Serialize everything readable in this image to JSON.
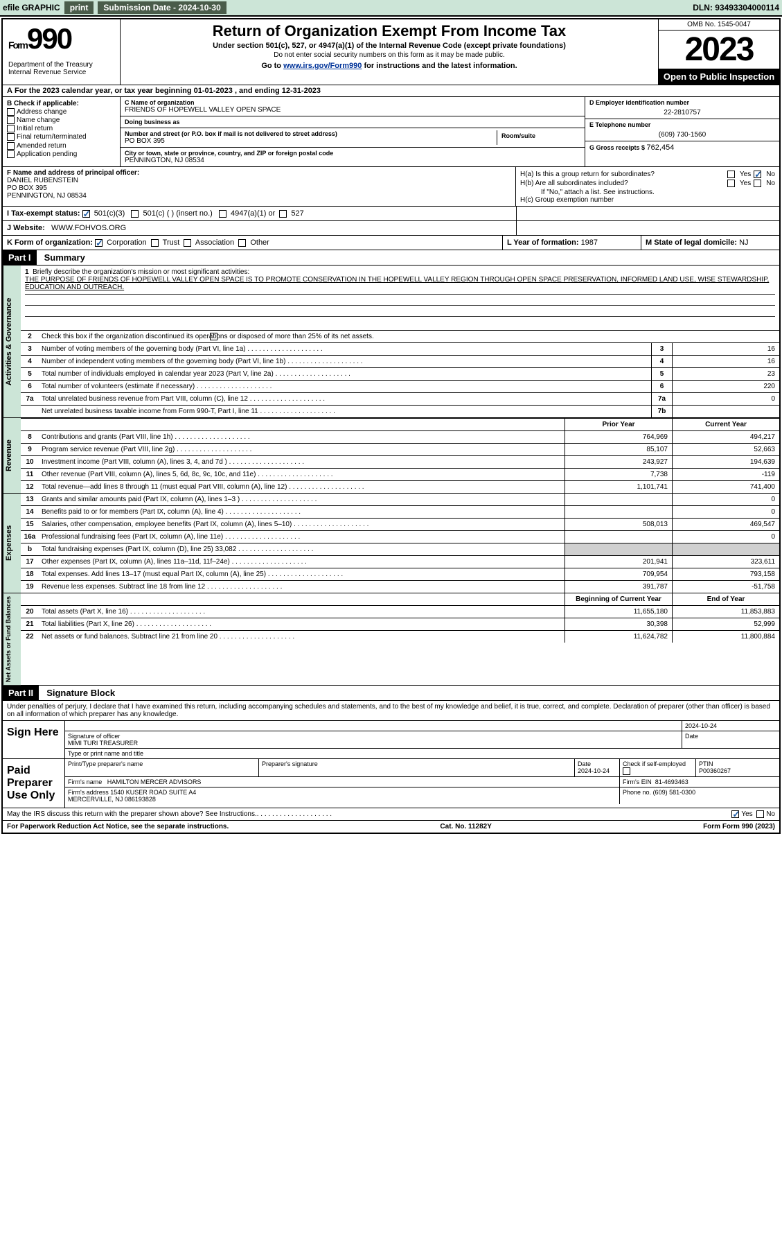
{
  "topbar": {
    "efile": "efile GRAPHIC",
    "print": "print",
    "submission_label": "Submission Date - ",
    "submission_date": "2024-10-30",
    "dln_label": "DLN: ",
    "dln": "93493304000114"
  },
  "header": {
    "form_label": "Form",
    "form_number": "990",
    "dept": "Department of the Treasury\nInternal Revenue Service",
    "title": "Return of Organization Exempt From Income Tax",
    "subtitle": "Under section 501(c), 527, or 4947(a)(1) of the Internal Revenue Code (except private foundations)",
    "note": "Do not enter social security numbers on this form as it may be made public.",
    "instructions_prefix": "Go to ",
    "instructions_link": "www.irs.gov/Form990",
    "instructions_suffix": " for instructions and the latest information.",
    "omb": "OMB No. 1545-0047",
    "tax_year": "2023",
    "inspection": "Open to Public Inspection"
  },
  "lineA": "For the 2023 calendar year, or tax year beginning 01-01-2023    , and ending 12-31-2023",
  "sectionB": {
    "label": "B Check if applicable:",
    "address_change": "Address change",
    "name_change": "Name change",
    "initial_return": "Initial return",
    "final_return": "Final return/terminated",
    "amended_return": "Amended return",
    "application_pending": "Application pending"
  },
  "sectionC": {
    "name_label": "C Name of organization",
    "name": "FRIENDS OF HOPEWELL VALLEY OPEN SPACE",
    "dba_label": "Doing business as",
    "dba": "",
    "street_label": "Number and street (or P.O. box if mail is not delivered to street address)",
    "street": "PO BOX 395",
    "room_label": "Room/suite",
    "room": "",
    "city_label": "City or town, state or province, country, and ZIP or foreign postal code",
    "city": "PENNINGTON, NJ  08534"
  },
  "sectionD": {
    "ein_label": "D Employer identification number",
    "ein": "22-2810757",
    "phone_label": "E Telephone number",
    "phone": "(609) 730-1560",
    "receipts_label": "G Gross receipts $ ",
    "receipts": "762,454"
  },
  "sectionF": {
    "label": "F  Name and address of principal officer:",
    "name": "DANIEL RUBENSTEIN",
    "street": "PO BOX 395",
    "city": "PENNINGTON, NJ   08534"
  },
  "sectionH": {
    "h_a": "H(a)  Is this a group return for subordinates?",
    "h_b": "H(b)  Are all subordinates included?",
    "h_note": "If \"No,\" attach a list. See instructions.",
    "h_c": "H(c)  Group exemption number",
    "yes": "Yes",
    "no": "No"
  },
  "sectionI": {
    "label": "I   Tax-exempt status:",
    "opt1": "501(c)(3)",
    "opt2": "501(c) (  ) (insert no.)",
    "opt3": "4947(a)(1) or",
    "opt4": "527"
  },
  "sectionJ": {
    "label": "J  Website:",
    "value": "WWW.FOHVOS.ORG"
  },
  "sectionK": {
    "label": "K Form of organization:",
    "corp": "Corporation",
    "trust": "Trust",
    "assoc": "Association",
    "other": "Other"
  },
  "sectionL": {
    "label": "L Year of formation: ",
    "value": "1987"
  },
  "sectionM": {
    "label": "M State of legal domicile: ",
    "value": "NJ"
  },
  "part1": {
    "hdr": "Part I",
    "title": "Summary",
    "mission_label": "Briefly describe the organization's mission or most significant activities:",
    "mission": "THE PURPOSE OF FRIENDS OF HOPEWELL VALLEY OPEN SPACE IS TO PROMOTE CONSERVATION IN THE HOPEWELL VALLEY REGION THROUGH OPEN SPACE PRESERVATION, INFORMED LAND USE, WISE STEWARDSHIP, EDUCATION AND OUTREACH.",
    "line2": "Check this box       if the organization discontinued its operations or disposed of more than 25% of its net assets.",
    "vtabs": {
      "governance": "Activities & Governance",
      "revenue": "Revenue",
      "expenses": "Expenses",
      "netassets": "Net Assets or Fund Balances"
    },
    "gov_rows": [
      {
        "n": "3",
        "d": "Number of voting members of the governing body (Part VI, line 1a)",
        "b": "3",
        "v": "16"
      },
      {
        "n": "4",
        "d": "Number of independent voting members of the governing body (Part VI, line 1b)",
        "b": "4",
        "v": "16"
      },
      {
        "n": "5",
        "d": "Total number of individuals employed in calendar year 2023 (Part V, line 2a)",
        "b": "5",
        "v": "23"
      },
      {
        "n": "6",
        "d": "Total number of volunteers (estimate if necessary)",
        "b": "6",
        "v": "220"
      },
      {
        "n": "7a",
        "d": "Total unrelated business revenue from Part VIII, column (C), line 12",
        "b": "7a",
        "v": "0"
      },
      {
        "n": "",
        "d": "Net unrelated business taxable income from Form 990-T, Part I, line 11",
        "b": "7b",
        "v": ""
      }
    ],
    "col_prior": "Prior Year",
    "col_current": "Current Year",
    "rev_rows": [
      {
        "n": "8",
        "d": "Contributions and grants (Part VIII, line 1h)",
        "p": "764,969",
        "c": "494,217"
      },
      {
        "n": "9",
        "d": "Program service revenue (Part VIII, line 2g)",
        "p": "85,107",
        "c": "52,663"
      },
      {
        "n": "10",
        "d": "Investment income (Part VIII, column (A), lines 3, 4, and 7d )",
        "p": "243,927",
        "c": "194,639"
      },
      {
        "n": "11",
        "d": "Other revenue (Part VIII, column (A), lines 5, 6d, 8c, 9c, 10c, and 11e)",
        "p": "7,738",
        "c": "-119"
      },
      {
        "n": "12",
        "d": "Total revenue—add lines 8 through 11 (must equal Part VIII, column (A), line 12)",
        "p": "1,101,741",
        "c": "741,400"
      }
    ],
    "exp_rows": [
      {
        "n": "13",
        "d": "Grants and similar amounts paid (Part IX, column (A), lines 1–3 )",
        "p": "",
        "c": "0"
      },
      {
        "n": "14",
        "d": "Benefits paid to or for members (Part IX, column (A), line 4)",
        "p": "",
        "c": "0"
      },
      {
        "n": "15",
        "d": "Salaries, other compensation, employee benefits (Part IX, column (A), lines 5–10)",
        "p": "508,013",
        "c": "469,547"
      },
      {
        "n": "16a",
        "d": "Professional fundraising fees (Part IX, column (A), line 11e)",
        "p": "",
        "c": "0"
      },
      {
        "n": "b",
        "d": "Total fundraising expenses (Part IX, column (D), line 25) 33,082",
        "p": "GRAY",
        "c": "GRAY"
      },
      {
        "n": "17",
        "d": "Other expenses (Part IX, column (A), lines 11a–11d, 11f–24e)",
        "p": "201,941",
        "c": "323,611"
      },
      {
        "n": "18",
        "d": "Total expenses. Add lines 13–17 (must equal Part IX, column (A), line 25)",
        "p": "709,954",
        "c": "793,158"
      },
      {
        "n": "19",
        "d": "Revenue less expenses. Subtract line 18 from line 12",
        "p": "391,787",
        "c": "-51,758"
      }
    ],
    "col_begin": "Beginning of Current Year",
    "col_end": "End of Year",
    "na_rows": [
      {
        "n": "20",
        "d": "Total assets (Part X, line 16)",
        "p": "11,655,180",
        "c": "11,853,883"
      },
      {
        "n": "21",
        "d": "Total liabilities (Part X, line 26)",
        "p": "30,398",
        "c": "52,999"
      },
      {
        "n": "22",
        "d": "Net assets or fund balances. Subtract line 21 from line 20",
        "p": "11,624,782",
        "c": "11,800,884"
      }
    ]
  },
  "part2": {
    "hdr": "Part II",
    "title": "Signature Block",
    "intro": "Under penalties of perjury, I declare that I have examined this return, including accompanying schedules and statements, and to the best of my knowledge and belief, it is true, correct, and complete. Declaration of preparer (other than officer) is based on all information of which preparer has any knowledge.",
    "sign_here": "Sign Here",
    "sig_date": "2024-10-24",
    "sig_of_officer": "Signature of officer",
    "officer_name": "MIMI TURI  TREASURER",
    "type_title": "Type or print name and title",
    "date_label": "Date",
    "paid_preparer": "Paid Preparer Use Only",
    "prep_name_label": "Print/Type preparer's name",
    "prep_sig_label": "Preparer's signature",
    "prep_date": "2024-10-24",
    "check_self": "Check        if self-employed",
    "ptin_label": "PTIN",
    "ptin": "P00360267",
    "firm_name_label": "Firm's name",
    "firm_name": "HAMILTON MERCER ADVISORS",
    "firm_ein_label": "Firm's EIN",
    "firm_ein": "81-4693463",
    "firm_address_label": "Firm's address",
    "firm_address": "1540 KUSER ROAD SUITE A4\nMERCERVILLE, NJ  086193828",
    "phone_label": "Phone no.",
    "phone": "(609) 581-0300",
    "discuss": "May the IRS discuss this return with the preparer shown above? See Instructions.",
    "yes": "Yes",
    "no": "No"
  },
  "footer": {
    "paperwork": "For Paperwork Reduction Act Notice, see the separate instructions.",
    "cat": "Cat. No. 11282Y",
    "form": "Form 990 (2023)"
  }
}
